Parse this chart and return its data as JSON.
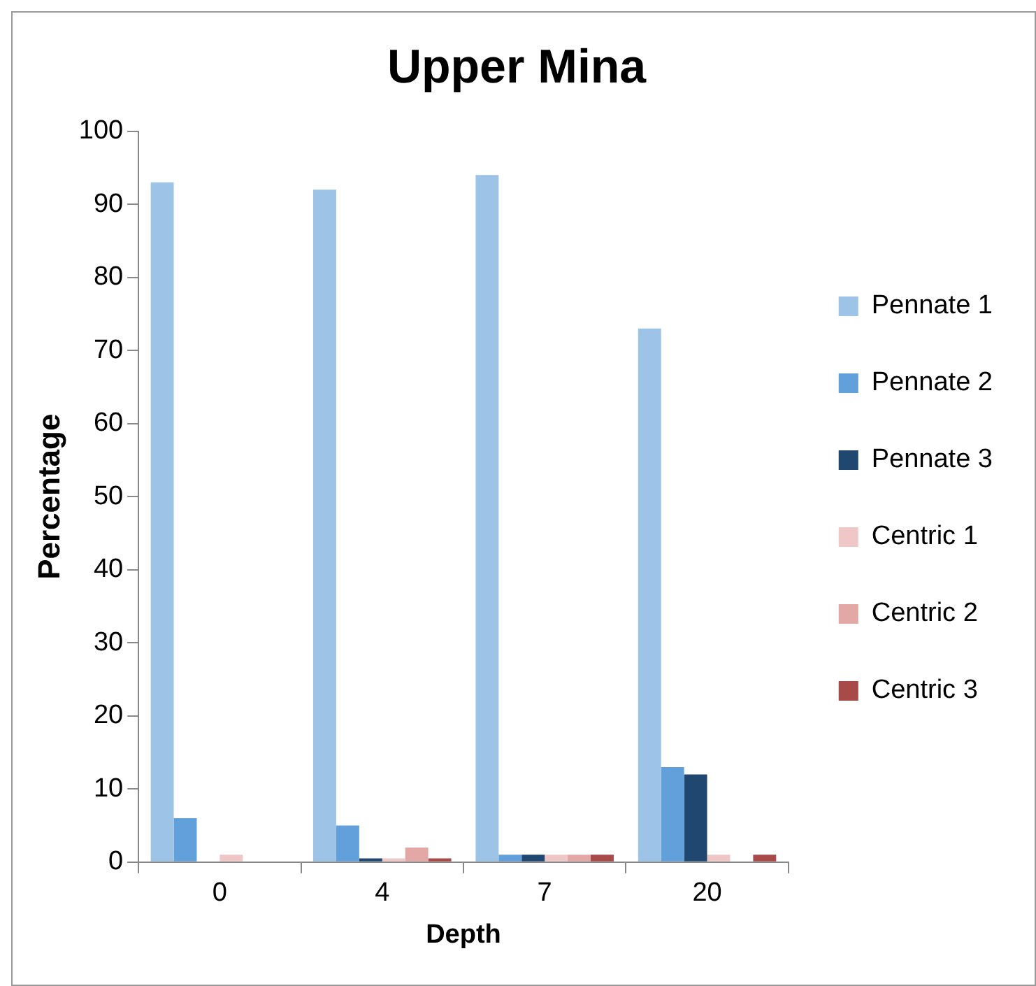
{
  "chart_data": {
    "type": "bar",
    "title": "Upper Mina",
    "xlabel": "Depth",
    "ylabel": "Percentage",
    "categories": [
      "0",
      "4",
      "7",
      "20"
    ],
    "series": [
      {
        "name": "Pennate 1",
        "color": "#9dc3e6",
        "values": [
          93,
          92,
          94,
          73
        ]
      },
      {
        "name": "Pennate 2",
        "color": "#62a0dc",
        "values": [
          6,
          5,
          1,
          13
        ]
      },
      {
        "name": "Pennate 3",
        "color": "#1f4770",
        "values": [
          0,
          0.5,
          1,
          12
        ]
      },
      {
        "name": "Centric 1",
        "color": "#efc7c6",
        "values": [
          1,
          0.5,
          1,
          1
        ]
      },
      {
        "name": "Centric 2",
        "color": "#e3a8a6",
        "values": [
          0,
          2,
          1,
          0
        ]
      },
      {
        "name": "Centric 3",
        "color": "#a84a47",
        "values": [
          0,
          0.5,
          1,
          1
        ]
      }
    ],
    "ylim": [
      0,
      100
    ],
    "yticks": [
      0,
      10,
      20,
      30,
      40,
      50,
      60,
      70,
      80,
      90,
      100
    ],
    "grid": false,
    "legend": "right"
  }
}
